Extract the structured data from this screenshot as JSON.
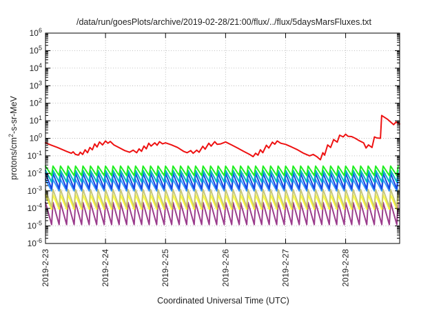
{
  "chart_data": {
    "type": "line",
    "title": "/data/run/goesPlots/archive/2019-02-28/21:00/flux/../flux/5daysMarsFluxes.txt",
    "xlabel": "Coordinated Universal Time (UTC)",
    "ylabel_prefix": "protons/cm",
    "ylabel_sup": "2",
    "ylabel_suffix": "-s-sr-MeV",
    "y_scale": "log",
    "ylim_exponent": [
      -6,
      6
    ],
    "y_tick_base": "10",
    "y_tick_exponents": [
      "-6",
      "-5",
      "-4",
      "-3",
      "-2",
      "-1",
      "0",
      "1",
      "2",
      "3",
      "4",
      "5",
      "6"
    ],
    "xlim_days": [
      0,
      5.9
    ],
    "x_ticks": [
      {
        "day": 0,
        "label": "2019-2-23"
      },
      {
        "day": 1,
        "label": "2019-2-24"
      },
      {
        "day": 2,
        "label": "2019-2-25"
      },
      {
        "day": 3,
        "label": "2019-2-26"
      },
      {
        "day": 4,
        "label": "2019-2-27"
      },
      {
        "day": 5,
        "label": "2019-2-28"
      }
    ],
    "grid": true,
    "legend": "none",
    "series": [
      {
        "color": "#ee1111",
        "points": [
          [
            0.0,
            0.55
          ],
          [
            0.1,
            0.4
          ],
          [
            0.2,
            0.3
          ],
          [
            0.35,
            0.18
          ],
          [
            0.43,
            0.14
          ],
          [
            0.46,
            0.17
          ],
          [
            0.5,
            0.12
          ],
          [
            0.55,
            0.11
          ],
          [
            0.58,
            0.16
          ],
          [
            0.62,
            0.12
          ],
          [
            0.66,
            0.22
          ],
          [
            0.7,
            0.15
          ],
          [
            0.74,
            0.3
          ],
          [
            0.78,
            0.22
          ],
          [
            0.82,
            0.48
          ],
          [
            0.86,
            0.32
          ],
          [
            0.9,
            0.62
          ],
          [
            0.95,
            0.42
          ],
          [
            1.0,
            0.7
          ],
          [
            1.04,
            0.52
          ],
          [
            1.08,
            0.66
          ],
          [
            1.14,
            0.42
          ],
          [
            1.22,
            0.3
          ],
          [
            1.32,
            0.2
          ],
          [
            1.4,
            0.16
          ],
          [
            1.46,
            0.21
          ],
          [
            1.52,
            0.15
          ],
          [
            1.56,
            0.25
          ],
          [
            1.6,
            0.18
          ],
          [
            1.64,
            0.36
          ],
          [
            1.68,
            0.25
          ],
          [
            1.72,
            0.52
          ],
          [
            1.76,
            0.36
          ],
          [
            1.82,
            0.55
          ],
          [
            1.86,
            0.4
          ],
          [
            1.9,
            0.64
          ],
          [
            1.95,
            0.48
          ],
          [
            2.0,
            0.55
          ],
          [
            2.1,
            0.42
          ],
          [
            2.2,
            0.3
          ],
          [
            2.3,
            0.18
          ],
          [
            2.36,
            0.15
          ],
          [
            2.42,
            0.2
          ],
          [
            2.46,
            0.14
          ],
          [
            2.52,
            0.21
          ],
          [
            2.56,
            0.16
          ],
          [
            2.62,
            0.35
          ],
          [
            2.66,
            0.24
          ],
          [
            2.72,
            0.52
          ],
          [
            2.76,
            0.36
          ],
          [
            2.82,
            0.64
          ],
          [
            2.86,
            0.45
          ],
          [
            2.92,
            0.48
          ],
          [
            3.0,
            0.62
          ],
          [
            3.1,
            0.42
          ],
          [
            3.2,
            0.28
          ],
          [
            3.3,
            0.18
          ],
          [
            3.4,
            0.12
          ],
          [
            3.46,
            0.09
          ],
          [
            3.5,
            0.14
          ],
          [
            3.54,
            0.11
          ],
          [
            3.58,
            0.22
          ],
          [
            3.62,
            0.15
          ],
          [
            3.68,
            0.4
          ],
          [
            3.72,
            0.28
          ],
          [
            3.78,
            0.6
          ],
          [
            3.82,
            0.46
          ],
          [
            3.86,
            0.7
          ],
          [
            3.92,
            0.52
          ],
          [
            4.0,
            0.45
          ],
          [
            4.1,
            0.32
          ],
          [
            4.2,
            0.22
          ],
          [
            4.3,
            0.14
          ],
          [
            4.4,
            0.1
          ],
          [
            4.46,
            0.12
          ],
          [
            4.52,
            0.09
          ],
          [
            4.58,
            0.06
          ],
          [
            4.62,
            0.15
          ],
          [
            4.65,
            0.11
          ],
          [
            4.7,
            0.42
          ],
          [
            4.75,
            0.3
          ],
          [
            4.8,
            0.85
          ],
          [
            4.86,
            0.6
          ],
          [
            4.9,
            1.5
          ],
          [
            4.96,
            1.2
          ],
          [
            5.0,
            1.7
          ],
          [
            5.04,
            1.3
          ],
          [
            5.1,
            1.25
          ],
          [
            5.16,
            1.0
          ],
          [
            5.22,
            0.75
          ],
          [
            5.3,
            0.55
          ],
          [
            5.34,
            0.28
          ],
          [
            5.38,
            0.42
          ],
          [
            5.44,
            0.3
          ],
          [
            5.48,
            1.2
          ],
          [
            5.52,
            1.05
          ],
          [
            5.58,
            1.0
          ],
          [
            5.6,
            20.0
          ],
          [
            5.7,
            12.0
          ],
          [
            5.8,
            6.0
          ],
          [
            5.84,
            8.5
          ],
          [
            5.9,
            6.5
          ]
        ]
      },
      {
        "color": "#22ee22",
        "pattern": "sawtooth",
        "period_days": 0.125,
        "min": 0.0075,
        "max": 0.026
      },
      {
        "color": "#00b8c8",
        "pattern": "sawtooth",
        "period_days": 0.125,
        "min": 0.0032,
        "max": 0.015
      },
      {
        "color": "#1a44e0",
        "pattern": "sawtooth",
        "period_days": 0.125,
        "min": 0.0013,
        "max": 0.01
      },
      {
        "color": "#3399ff",
        "pattern": "sawtooth",
        "period_days": 0.125,
        "min": 0.001,
        "max": 0.0045
      },
      {
        "color": "#c8c87a",
        "pattern": "sawtooth",
        "period_days": 0.125,
        "min": 0.00012,
        "max": 0.0012
      },
      {
        "color": "#ffff33",
        "pattern": "sawtooth",
        "period_days": 0.125,
        "min": 9e-05,
        "max": 0.0006
      },
      {
        "color": "#9b3c8c",
        "pattern": "sawtooth",
        "period_days": 0.125,
        "min": 1.2e-05,
        "max": 0.00022
      }
    ]
  }
}
